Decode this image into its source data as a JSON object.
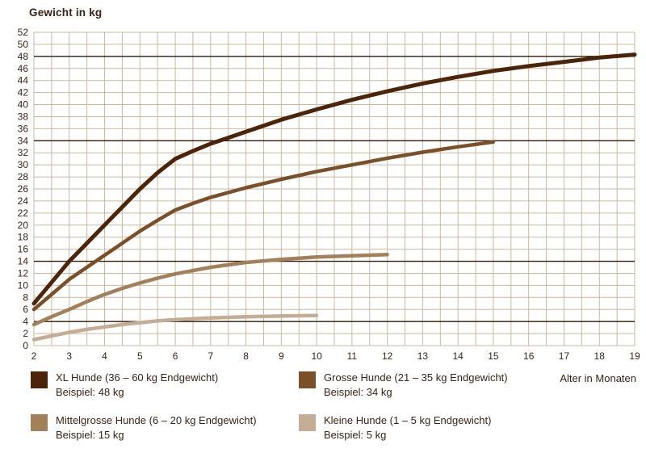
{
  "title": "Gewicht in kg",
  "x_axis_label": "Alter in Monaten",
  "colors": {
    "text": "#3a2313",
    "grid": "#cbb79c",
    "reference_line": "#33190a",
    "background": "#ffffff"
  },
  "chart_data": {
    "type": "line",
    "title": "Gewicht in kg",
    "xlabel": "Alter in Monaten",
    "ylabel": "Gewicht in kg",
    "xlim": [
      2,
      19
    ],
    "ylim": [
      0,
      52
    ],
    "x_ticks": [
      2,
      3,
      4,
      5,
      6,
      7,
      8,
      9,
      10,
      11,
      12,
      13,
      14,
      15,
      16,
      17,
      18,
      19
    ],
    "y_tick_step": 2,
    "grid": {
      "x_step": 0.5,
      "y_step": 2,
      "color": "#cbb79c"
    },
    "reference_color": "#33190a",
    "reference_lines": [
      48,
      34,
      14,
      4
    ],
    "series": [
      {
        "name": "XL Hunde",
        "legend_label": "XL Hunde (36 – 60 kg Endgewicht)",
        "example_label": "Beispiel: 48 kg",
        "color": "#4b2409",
        "width": 5,
        "points": [
          [
            2,
            7
          ],
          [
            2.5,
            10.5
          ],
          [
            3,
            14
          ],
          [
            3.5,
            17
          ],
          [
            4,
            20
          ],
          [
            4.5,
            23
          ],
          [
            5,
            26
          ],
          [
            5.5,
            28.7
          ],
          [
            6,
            31
          ],
          [
            6.5,
            32.3
          ],
          [
            7,
            33.5
          ],
          [
            7.5,
            34.5
          ],
          [
            8,
            35.5
          ],
          [
            9,
            37.5
          ],
          [
            10,
            39.2
          ],
          [
            11,
            40.8
          ],
          [
            12,
            42.2
          ],
          [
            13,
            43.5
          ],
          [
            14,
            44.6
          ],
          [
            15,
            45.6
          ],
          [
            16,
            46.4
          ],
          [
            17,
            47.1
          ],
          [
            18,
            47.8
          ],
          [
            19,
            48.3
          ]
        ]
      },
      {
        "name": "Grosse Hunde",
        "legend_label": "Grosse Hunde (21 – 35 kg Endgewicht)",
        "example_label": "Beispiel: 34 kg",
        "color": "#7a5029",
        "width": 4.5,
        "points": [
          [
            2,
            6
          ],
          [
            2.5,
            8.5
          ],
          [
            3,
            11
          ],
          [
            3.5,
            13
          ],
          [
            4,
            15
          ],
          [
            4.5,
            17
          ],
          [
            5,
            19
          ],
          [
            5.5,
            20.8
          ],
          [
            6,
            22.5
          ],
          [
            6.5,
            23.6
          ],
          [
            7,
            24.6
          ],
          [
            8,
            26.2
          ],
          [
            9,
            27.6
          ],
          [
            10,
            28.9
          ],
          [
            11,
            30
          ],
          [
            12,
            31.1
          ],
          [
            13,
            32.1
          ],
          [
            14,
            33
          ],
          [
            15,
            33.8
          ]
        ]
      },
      {
        "name": "Mittelgrosse Hunde",
        "legend_label": "Mittelgrosse Hunde (6 – 20 kg Endgewicht)",
        "example_label": "Beispiel: 15 kg",
        "color": "#a28059",
        "width": 4.5,
        "points": [
          [
            2,
            3.5
          ],
          [
            2.5,
            4.8
          ],
          [
            3,
            6
          ],
          [
            3.5,
            7.3
          ],
          [
            4,
            8.5
          ],
          [
            4.5,
            9.5
          ],
          [
            5,
            10.4
          ],
          [
            5.5,
            11.2
          ],
          [
            6,
            11.9
          ],
          [
            7,
            13
          ],
          [
            8,
            13.8
          ],
          [
            9,
            14.3
          ],
          [
            10,
            14.7
          ],
          [
            11,
            14.9
          ],
          [
            12,
            15.1
          ]
        ]
      },
      {
        "name": "Kleine Hunde",
        "legend_label": "Kleine Hunde (1 – 5 kg Endgewicht)",
        "example_label": "Beispiel: 5 kg",
        "color": "#c4ad94",
        "width": 4.5,
        "points": [
          [
            2,
            1
          ],
          [
            2.5,
            1.6
          ],
          [
            3,
            2.2
          ],
          [
            3.5,
            2.7
          ],
          [
            4,
            3.1
          ],
          [
            4.5,
            3.5
          ],
          [
            5,
            3.8
          ],
          [
            5.5,
            4.1
          ],
          [
            6,
            4.3
          ],
          [
            7,
            4.6
          ],
          [
            8,
            4.8
          ],
          [
            9,
            4.9
          ],
          [
            10,
            5
          ]
        ]
      }
    ]
  }
}
